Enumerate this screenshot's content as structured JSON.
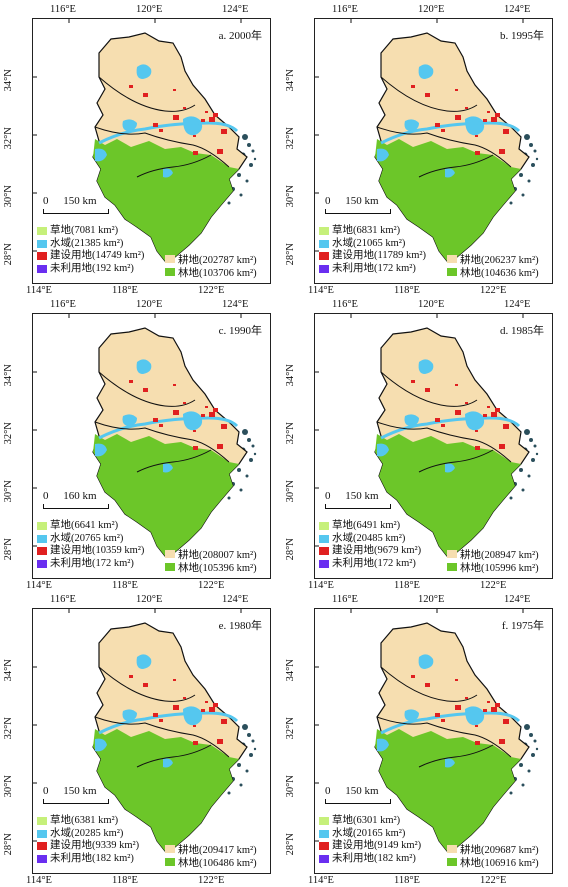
{
  "colors": {
    "grass": "#c6f07a",
    "water": "#55c7ef",
    "built": "#e02020",
    "unused": "#6a2ef0",
    "crop": "#f6deb0",
    "forest": "#6cc629",
    "sea": "#2b4f5c",
    "boundary": "#111111"
  },
  "top_ticks": [
    "116°E",
    "120°E",
    "124°E"
  ],
  "bottom_ticks": [
    "114°E",
    "118°E",
    "122°E"
  ],
  "left_ticks": [
    "34°N",
    "32°N",
    "30°N",
    "28°N"
  ],
  "right_ticks": [
    "32°N",
    "30°N",
    "28°N",
    "26°N"
  ],
  "legend_labels": {
    "grass": "草地",
    "water": "水域",
    "built": "建设用地",
    "unused": "未利用地",
    "crop": "耕地",
    "forest": "林地"
  },
  "panels": [
    {
      "title": "a. 2000年",
      "scale": "150 km",
      "grass": "(7081 km²)",
      "water": "(21385 km²)",
      "built": "(14749 km²)",
      "unused": "(192 km²)",
      "crop": "(202787 km²)",
      "forest": "(103706 km²)"
    },
    {
      "title": "b. 1995年",
      "scale": "150 km",
      "grass": "(6831 km²)",
      "water": "(21065 km²)",
      "built": "(11789 km²)",
      "unused": "(172 km²)",
      "crop": "(206237 km²)",
      "forest": "(104636 km²)"
    },
    {
      "title": "c. 1990年",
      "scale": "160 km",
      "grass": "(6641 km²)",
      "water": "(20765 km²)",
      "built": "(10359 km²)",
      "unused": "(172 km²)",
      "crop": "(208007 km²)",
      "forest": "(105396 km²)"
    },
    {
      "title": "d. 1985年",
      "scale": "150 km",
      "grass": "(6491 km²)",
      "water": "(20485 km²)",
      "built": "(9679 km²)",
      "unused": "(172 km²)",
      "crop": "(208947 km²)",
      "forest": "(105996 km²)"
    },
    {
      "title": "e. 1980年",
      "scale": "150 km",
      "grass": "(6381 km²)",
      "water": "(20285 km²)",
      "built": "(9339 km²)",
      "unused": "(182 km²)",
      "crop": "(209417 km²)",
      "forest": "(106486 km²)"
    },
    {
      "title": "f. 1975年",
      "scale": "150 km",
      "grass": "(6301 km²)",
      "water": "(20165 km²)",
      "built": "(9149 km²)",
      "unused": "(182 km²)",
      "crop": "(209687 km²)",
      "forest": "(106916 km²)"
    }
  ]
}
